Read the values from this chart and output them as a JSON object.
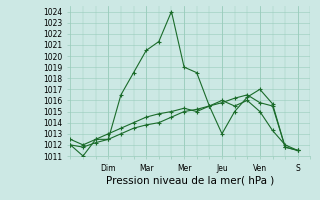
{
  "title": "",
  "xlabel": "Pression niveau de la mer( hPa )",
  "ylabel": "",
  "background_color": "#cce8e4",
  "grid_color": "#99ccbb",
  "line_color": "#1a6b2a",
  "ylim": [
    1011,
    1024.5
  ],
  "yticks": [
    1011,
    1012,
    1013,
    1014,
    1015,
    1016,
    1017,
    1018,
    1019,
    1020,
    1021,
    1022,
    1023,
    1024
  ],
  "day_labels": [
    "Dim",
    "Mar",
    "Mer",
    "Jeu",
    "Ven",
    "S"
  ],
  "day_positions": [
    18,
    36,
    54,
    72,
    90,
    108
  ],
  "xlim": [
    0,
    114
  ],
  "line1_x": [
    0,
    6,
    12,
    18,
    24,
    30,
    36,
    42,
    48,
    54,
    60,
    66,
    72,
    78,
    84,
    90,
    96,
    102,
    108
  ],
  "line1_y": [
    1012.0,
    1011.0,
    1012.5,
    1012.5,
    1016.5,
    1018.5,
    1020.5,
    1021.3,
    1024.0,
    1019.0,
    1018.5,
    1015.5,
    1013.0,
    1015.0,
    1016.3,
    1017.0,
    1015.7,
    1011.8,
    1011.5
  ],
  "line2_x": [
    0,
    6,
    12,
    18,
    24,
    30,
    36,
    42,
    48,
    54,
    60,
    66,
    72,
    78,
    84,
    90,
    96,
    102,
    108
  ],
  "line2_y": [
    1012.5,
    1012.0,
    1012.5,
    1013.0,
    1013.5,
    1014.0,
    1014.5,
    1014.8,
    1015.0,
    1015.3,
    1015.0,
    1015.5,
    1016.0,
    1015.5,
    1016.0,
    1015.0,
    1013.3,
    1012.0,
    1011.5
  ],
  "line3_x": [
    0,
    6,
    12,
    18,
    24,
    30,
    36,
    42,
    48,
    54,
    60,
    66,
    72,
    78,
    84,
    90,
    96,
    102,
    108
  ],
  "line3_y": [
    1012.0,
    1011.8,
    1012.2,
    1012.5,
    1013.0,
    1013.5,
    1013.8,
    1014.0,
    1014.5,
    1015.0,
    1015.2,
    1015.5,
    1015.8,
    1016.2,
    1016.5,
    1015.8,
    1015.5,
    1011.8,
    1011.5
  ],
  "tick_fontsize": 5.5,
  "xlabel_fontsize": 7.5
}
